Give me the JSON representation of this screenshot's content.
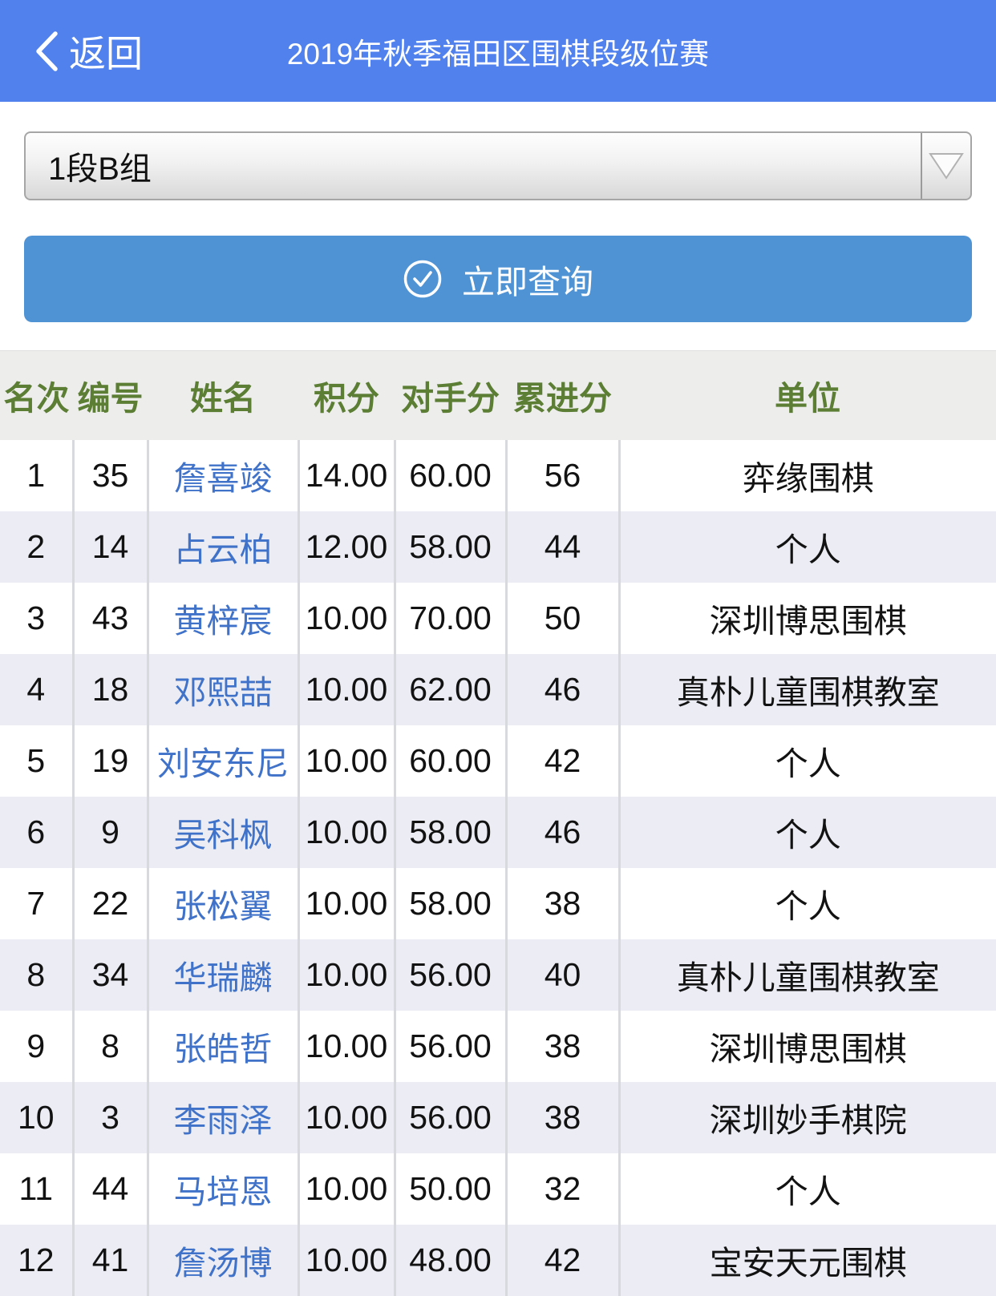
{
  "header": {
    "back_label": "返回",
    "title": "2019年秋季福田区围棋段级位赛"
  },
  "filters": {
    "group_select": {
      "value": "1段B组"
    },
    "query_button": {
      "label": "立即查询",
      "icon": "circle-check-icon"
    }
  },
  "table": {
    "columns": [
      "名次",
      "编号",
      "姓名",
      "积分",
      "对手分",
      "累进分",
      "单位"
    ],
    "rows": [
      [
        "1",
        "35",
        "詹喜竣",
        "14.00",
        "60.00",
        "56",
        "弈缘围棋"
      ],
      [
        "2",
        "14",
        "占云柏",
        "12.00",
        "58.00",
        "44",
        "个人"
      ],
      [
        "3",
        "43",
        "黄梓宸",
        "10.00",
        "70.00",
        "50",
        "深圳博思围棋"
      ],
      [
        "4",
        "18",
        "邓熙喆",
        "10.00",
        "62.00",
        "46",
        "真朴儿童围棋教室"
      ],
      [
        "5",
        "19",
        "刘安东尼",
        "10.00",
        "60.00",
        "42",
        "个人"
      ],
      [
        "6",
        "9",
        "吴科枫",
        "10.00",
        "58.00",
        "46",
        "个人"
      ],
      [
        "7",
        "22",
        "张松翼",
        "10.00",
        "58.00",
        "38",
        "个人"
      ],
      [
        "8",
        "34",
        "华瑞麟",
        "10.00",
        "56.00",
        "40",
        "真朴儿童围棋教室"
      ],
      [
        "9",
        "8",
        "张皓哲",
        "10.00",
        "56.00",
        "38",
        "深圳博思围棋"
      ],
      [
        "10",
        "3",
        "李雨泽",
        "10.00",
        "56.00",
        "38",
        "深圳妙手棋院"
      ],
      [
        "11",
        "44",
        "马培恩",
        "10.00",
        "50.00",
        "32",
        "个人"
      ],
      [
        "12",
        "41",
        "詹汤博",
        "10.00",
        "48.00",
        "42",
        "宝安天元围棋"
      ]
    ]
  },
  "colors": {
    "topbar": "#5181ed",
    "button": "#4f93d5",
    "header_text": "#5b7d34",
    "row_alt": "#ebecf4",
    "name_link": "#3f72c8"
  }
}
